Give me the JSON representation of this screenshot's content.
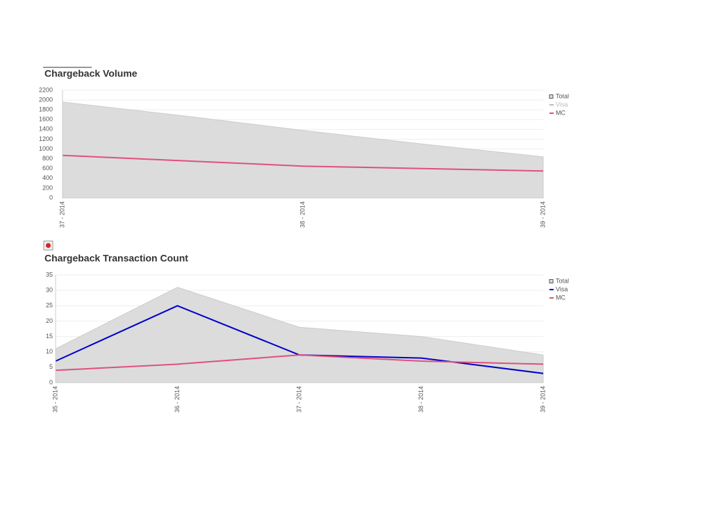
{
  "chart_data": [
    {
      "type": "line",
      "title": "Chargeback Volume",
      "categories": [
        "37 - 2014",
        null,
        "38 - 2014",
        null,
        "39 - 2014"
      ],
      "series": [
        {
          "name": "Total",
          "color": "#dcdcdc",
          "fill": "area",
          "values": [
            1960,
            1680,
            1380,
            1100,
            840
          ]
        },
        {
          "name": "Visa",
          "color": "#0000cc",
          "visible": false
        },
        {
          "name": "MC",
          "color": "#e0507a",
          "values": [
            870,
            760,
            650,
            600,
            550
          ]
        }
      ],
      "ylim": [
        0,
        2200
      ],
      "yticks": [
        0,
        200,
        400,
        600,
        800,
        1000,
        1200,
        1400,
        1600,
        1800,
        2000,
        2200
      ],
      "grid": true,
      "legend": "right"
    },
    {
      "type": "line",
      "title": "Chargeback Transaction Count",
      "categories": [
        "35 - 2014",
        "36 - 2014",
        "37 - 2014",
        "38 - 2014",
        "39 - 2014"
      ],
      "series": [
        {
          "name": "Total",
          "color": "#dcdcdc",
          "fill": "area",
          "values": [
            11,
            31,
            18,
            15,
            9
          ]
        },
        {
          "name": "Visa",
          "color": "#0000cc",
          "values": [
            7,
            25,
            9,
            8,
            3
          ]
        },
        {
          "name": "MC",
          "color": "#e0507a",
          "values": [
            4,
            6,
            9,
            7,
            6
          ]
        }
      ],
      "ylim": [
        0,
        35
      ],
      "yticks": [
        0,
        5,
        10,
        15,
        20,
        25,
        30,
        35
      ],
      "grid": true,
      "legend": "right"
    }
  ]
}
